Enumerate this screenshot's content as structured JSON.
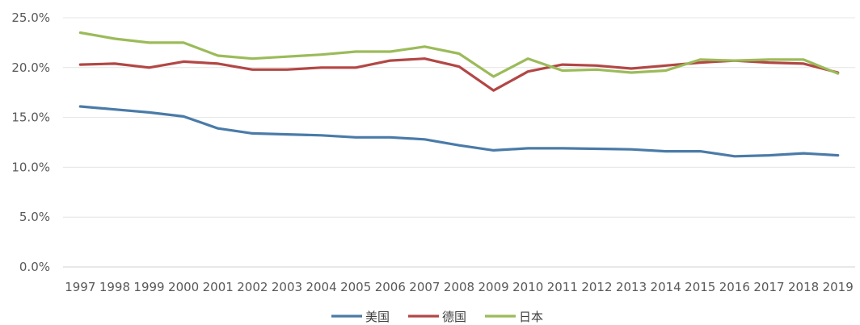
{
  "chart_data": {
    "type": "line",
    "title": "",
    "xlabel": "",
    "ylabel": "",
    "ylim": [
      0,
      25
    ],
    "ytick_step": 5,
    "y_tick_format": "percent_1dp",
    "grid": "horizontal",
    "legend_position": "bottom",
    "x": [
      "1997",
      "1998",
      "1999",
      "2000",
      "2001",
      "2002",
      "2003",
      "2004",
      "2005",
      "2006",
      "2007",
      "2008",
      "2009",
      "2010",
      "2011",
      "2012",
      "2013",
      "2014",
      "2015",
      "2016",
      "2017",
      "2018",
      "2019"
    ],
    "series": [
      {
        "name": "美国",
        "color": "#4a7ba8",
        "values": [
          16.1,
          15.8,
          15.5,
          15.1,
          13.9,
          13.4,
          13.3,
          13.2,
          13.0,
          13.0,
          12.8,
          12.2,
          11.7,
          11.9,
          11.9,
          11.85,
          11.8,
          11.6,
          11.6,
          11.1,
          11.2,
          11.4,
          11.2
        ]
      },
      {
        "name": "德国",
        "color": "#b24745",
        "values": [
          20.3,
          20.4,
          20.0,
          20.6,
          20.4,
          19.8,
          19.8,
          20.0,
          20.0,
          20.7,
          20.9,
          20.1,
          17.7,
          19.6,
          20.3,
          20.2,
          19.9,
          20.2,
          20.5,
          20.7,
          20.5,
          20.4,
          19.5
        ]
      },
      {
        "name": "日本",
        "color": "#9bbb59",
        "values": [
          23.5,
          22.9,
          22.5,
          22.5,
          21.2,
          20.9,
          21.1,
          21.3,
          21.6,
          21.6,
          22.1,
          21.4,
          19.1,
          20.9,
          19.7,
          19.8,
          19.5,
          19.7,
          20.8,
          20.7,
          20.8,
          20.8,
          19.4
        ]
      }
    ]
  }
}
